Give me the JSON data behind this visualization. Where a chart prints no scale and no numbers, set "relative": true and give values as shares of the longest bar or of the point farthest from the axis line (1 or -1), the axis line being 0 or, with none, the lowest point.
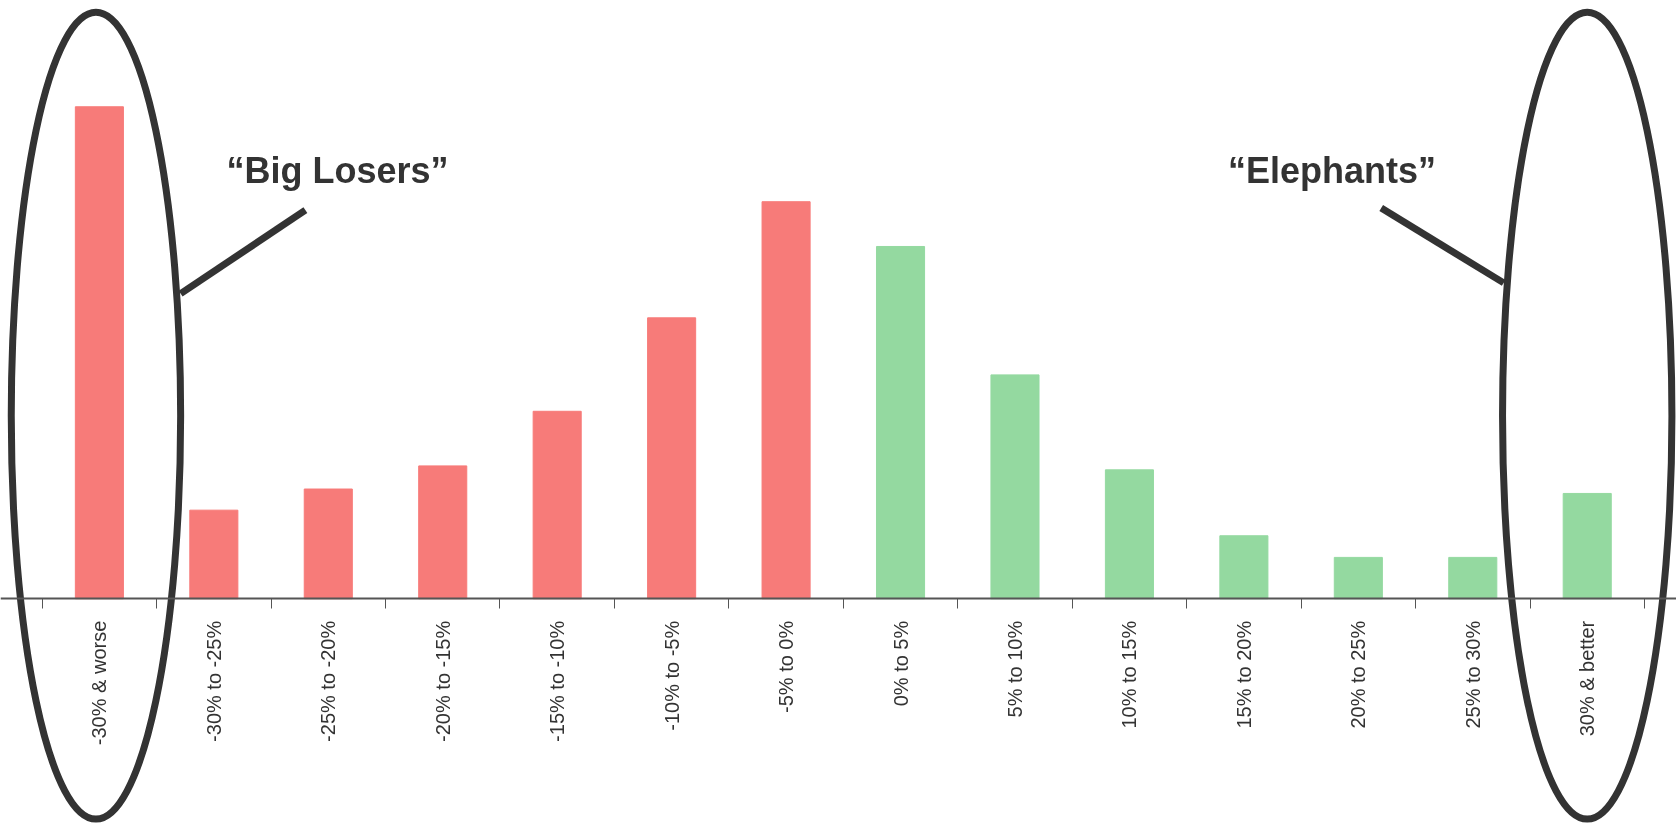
{
  "chart_data": {
    "type": "bar",
    "relative": true,
    "categories": [
      "-30% & worse",
      "-30% to -25%",
      "-25% to -20%",
      "-20% to -15%",
      "-15% to -10%",
      "-10% to -5%",
      "-5% to 0%",
      "0% to 5%",
      "5% to 10%",
      "10% to 15%",
      "15% to 20%",
      "20% to 25%",
      "25% to 30%",
      "30% & better"
    ],
    "values": [
      1,
      0.18,
      0.223,
      0.27,
      0.381,
      0.571,
      0.807,
      0.716,
      0.455,
      0.262,
      0.128,
      0.084,
      0.084,
      0.214
    ],
    "colors": [
      "#f77b79",
      "#f77b79",
      "#f77b79",
      "#f77b79",
      "#f77b79",
      "#f77b79",
      "#f77b79",
      "#94d9a0",
      "#94d9a0",
      "#94d9a0",
      "#94d9a0",
      "#94d9a0",
      "#94d9a0",
      "#94d9a0"
    ],
    "annotations": [
      "“Big Losers”",
      "“Elephants”"
    ]
  }
}
